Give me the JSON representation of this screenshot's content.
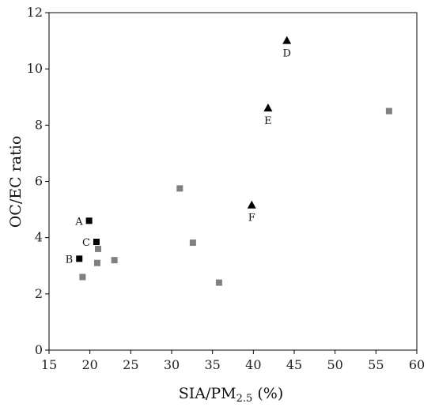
{
  "chart_data": {
    "type": "scatter",
    "xlabel": "SIA/PM",
    "xlabel_subscript": "2.5",
    "xlabel_suffix": " (%)",
    "ylabel": "OC/EC ratio",
    "xlim": [
      15,
      60
    ],
    "ylim": [
      0,
      12
    ],
    "xticks": [
      15,
      20,
      25,
      30,
      35,
      40,
      45,
      50,
      55,
      60
    ],
    "yticks": [
      0,
      2,
      4,
      6,
      8,
      10,
      12
    ],
    "grid": false,
    "series": [
      {
        "marker": "square",
        "color": "#000000",
        "points": [
          {
            "x": 19.9,
            "y": 4.6,
            "label": "A"
          },
          {
            "x": 18.7,
            "y": 3.25,
            "label": "B"
          },
          {
            "x": 20.8,
            "y": 3.85,
            "label": "C"
          }
        ]
      },
      {
        "marker": "triangle",
        "color": "#000000",
        "points": [
          {
            "x": 44.1,
            "y": 11.0,
            "label": "D"
          },
          {
            "x": 41.8,
            "y": 8.6,
            "label": "E"
          },
          {
            "x": 39.8,
            "y": 5.15,
            "label": "F"
          }
        ]
      },
      {
        "marker": "square",
        "color": "#808080",
        "points": [
          {
            "x": 19.1,
            "y": 2.6
          },
          {
            "x": 20.9,
            "y": 3.1
          },
          {
            "x": 21.0,
            "y": 3.6
          },
          {
            "x": 23.0,
            "y": 3.2
          },
          {
            "x": 31.0,
            "y": 5.75
          },
          {
            "x": 32.6,
            "y": 3.82
          },
          {
            "x": 35.8,
            "y": 2.4
          },
          {
            "x": 56.6,
            "y": 8.5
          }
        ]
      }
    ]
  }
}
